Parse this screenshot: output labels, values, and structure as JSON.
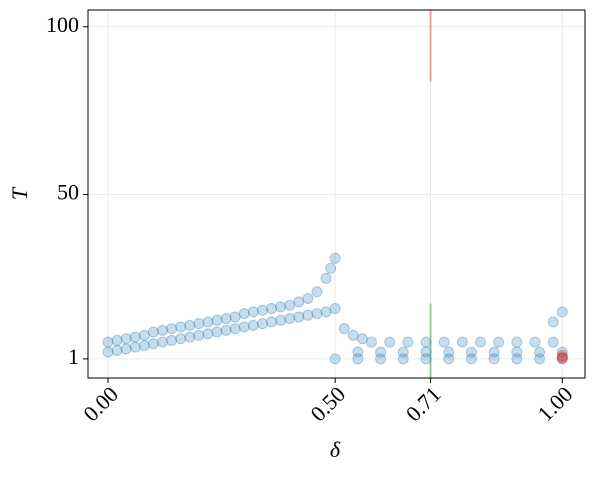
{
  "chart_data": {
    "type": "scatter",
    "x_label": "δ",
    "y_label": "T",
    "xlim": [
      -0.044,
      1.05
    ],
    "ylim": [
      -4.7,
      105
    ],
    "xticks": [
      {
        "value": 0,
        "label": "0.00"
      },
      {
        "value": 0.5,
        "label": "0.50"
      },
      {
        "value": 0.71,
        "label": "0.71"
      },
      {
        "value": 1,
        "label": "1.00"
      }
    ],
    "yticks": [
      1,
      50,
      100
    ],
    "grid": true,
    "series": [
      {
        "color": "#1f77b4",
        "x": [
          0,
          0,
          0.02,
          0.02,
          0.04,
          0.04,
          0.06,
          0.06,
          0.08,
          0.08,
          0.1,
          0.1,
          0.12,
          0.12,
          0.14,
          0.14,
          0.16,
          0.16,
          0.18,
          0.18,
          0.2,
          0.2,
          0.22,
          0.22,
          0.24,
          0.24,
          0.26,
          0.26,
          0.28,
          0.28,
          0.3,
          0.3,
          0.32,
          0.32,
          0.34,
          0.34,
          0.36,
          0.36,
          0.38,
          0.38,
          0.4,
          0.4,
          0.42,
          0.42,
          0.44,
          0.44,
          0.46,
          0.46,
          0.48,
          0.48,
          0.49,
          0.5,
          0.5,
          0.52,
          0.54,
          0.56,
          0.5,
          0.55,
          0.6,
          0.65,
          0.7,
          0.75,
          0.8,
          0.85,
          0.9,
          0.95,
          1.0,
          0.55,
          0.6,
          0.65,
          0.7,
          0.75,
          0.8,
          0.85,
          0.9,
          0.95,
          1.0,
          0.58,
          0.62,
          0.66,
          0.7,
          0.74,
          0.78,
          0.82,
          0.86,
          0.9,
          0.94,
          0.98,
          0.98,
          1.0
        ],
        "values": [
          3,
          6,
          3.5,
          6.5,
          4,
          7,
          4.5,
          7.5,
          5,
          8,
          5.5,
          9,
          6,
          9.5,
          6.5,
          10,
          7,
          10.5,
          7.5,
          11,
          8,
          11.5,
          8.5,
          12,
          9,
          12.5,
          9.5,
          13,
          10,
          13.5,
          10.5,
          14.5,
          11,
          15,
          11.5,
          15.5,
          12,
          16,
          12.5,
          16.5,
          13,
          17,
          13.5,
          18,
          14,
          19,
          14.5,
          21,
          15,
          25,
          28,
          16,
          31,
          10,
          8,
          7,
          1,
          1,
          1,
          1,
          1,
          1,
          1,
          1,
          1,
          1,
          1,
          3,
          3,
          3,
          3,
          3,
          3,
          3,
          3,
          3,
          3,
          6,
          6,
          6,
          6,
          6,
          6,
          6,
          6,
          6,
          6,
          6,
          12,
          15
        ]
      },
      {
        "color": "#d62728",
        "x": [
          1,
          1,
          1
        ],
        "values": [
          1.2,
          2,
          1.5
        ]
      }
    ],
    "vlines": [
      {
        "x": 0.71,
        "ymin": 83.6,
        "ymax": 105,
        "color": "#e8a09a"
      },
      {
        "x": 0.71,
        "ymin": -4.7,
        "ymax": 17.5,
        "color": "#98c898"
      }
    ]
  }
}
